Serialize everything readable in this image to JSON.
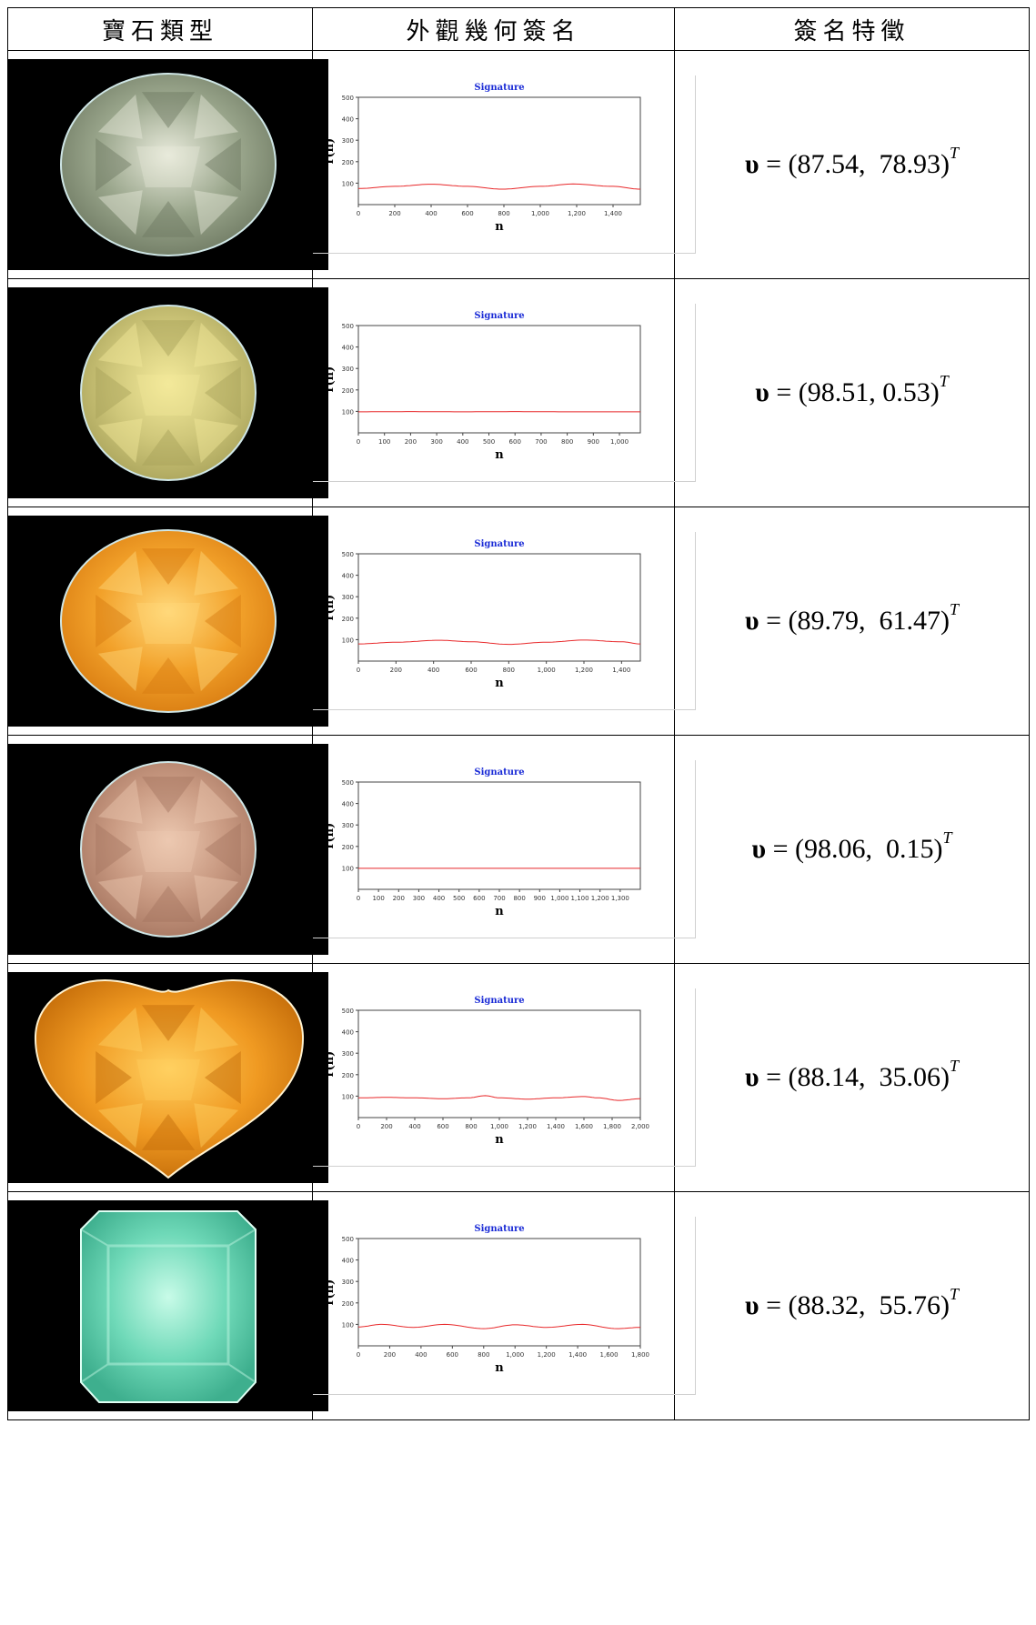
{
  "headers": [
    "寶石類型",
    "外觀幾何簽名",
    "簽名特徵"
  ],
  "chart_common": {
    "title": "Signature",
    "ylabel": "r(n)",
    "xlabel": "n",
    "yticks": [
      100,
      200,
      300,
      400,
      500
    ]
  },
  "rows": [
    {
      "gem": {
        "shape": "oval",
        "colors": [
          "#9aa68c",
          "#6d7861",
          "#e8eadb"
        ]
      },
      "feature": {
        "symbol": "υ",
        "value": "(87.54,  78.93)",
        "sup": "T"
      },
      "chart_data": {
        "type": "line",
        "title": "Signature",
        "xlabel": "n",
        "ylabel": "r(n)",
        "xlim": [
          0,
          1550
        ],
        "ylim": [
          0,
          500
        ],
        "xticks": [
          0,
          200,
          400,
          600,
          800,
          1000,
          1200,
          1400
        ],
        "xtick_labels": [
          "0",
          "200",
          "400",
          "600",
          "800",
          "1,000",
          "1,200",
          "1,400"
        ],
        "series": [
          {
            "x": [
              0,
              200,
              400,
              600,
              790,
              1000,
              1180,
              1400,
              1550
            ],
            "y": [
              75,
              85,
              95,
              85,
              72,
              85,
              96,
              85,
              72
            ]
          }
        ]
      }
    },
    {
      "gem": {
        "shape": "round",
        "colors": [
          "#cfc77a",
          "#a8a25a",
          "#f3e99a"
        ]
      },
      "feature": {
        "symbol": "υ",
        "value": "(98.51, 0.53)",
        "sup": "T"
      },
      "chart_data": {
        "type": "line",
        "title": "Signature",
        "xlabel": "n",
        "ylabel": "r(n)",
        "xlim": [
          0,
          1080
        ],
        "ylim": [
          0,
          500
        ],
        "xticks": [
          0,
          100,
          200,
          300,
          400,
          500,
          600,
          700,
          800,
          900,
          1000
        ],
        "xtick_labels": [
          "0",
          "100",
          "200",
          "300",
          "400",
          "500",
          "600",
          "700",
          "800",
          "900",
          "1,000"
        ],
        "series": [
          {
            "x": [
              0,
              200,
              400,
              600,
              800,
              1080
            ],
            "y": [
              98,
              99,
              98,
              99,
              98,
              98
            ]
          }
        ]
      }
    },
    {
      "gem": {
        "shape": "oval",
        "colors": [
          "#f2a12a",
          "#d77a10",
          "#ffd87a"
        ]
      },
      "feature": {
        "symbol": "υ",
        "value": "(89.79,  61.47)",
        "sup": "T"
      },
      "chart_data": {
        "type": "line",
        "title": "Signature",
        "xlabel": "n",
        "ylabel": "r(n)",
        "xlim": [
          0,
          1500
        ],
        "ylim": [
          0,
          500
        ],
        "xticks": [
          0,
          200,
          400,
          600,
          800,
          1000,
          1200,
          1400
        ],
        "xtick_labels": [
          "0",
          "200",
          "400",
          "600",
          "800",
          "1,000",
          "1,200",
          "1,400"
        ],
        "series": [
          {
            "x": [
              0,
              200,
              430,
              600,
              800,
              1000,
              1200,
              1400,
              1500
            ],
            "y": [
              80,
              88,
              97,
              90,
              78,
              88,
              98,
              90,
              80
            ]
          }
        ]
      }
    },
    {
      "gem": {
        "shape": "round",
        "colors": [
          "#c99a82",
          "#a57560",
          "#ecc8b0"
        ]
      },
      "feature": {
        "symbol": "υ",
        "value": "(98.06,  0.15)",
        "sup": "T"
      },
      "chart_data": {
        "type": "line",
        "title": "Signature",
        "xlabel": "n",
        "ylabel": "r(n)",
        "xlim": [
          0,
          1400
        ],
        "ylim": [
          0,
          500
        ],
        "xticks": [
          0,
          100,
          200,
          300,
          400,
          500,
          600,
          700,
          800,
          900,
          1000,
          1100,
          1200,
          1300
        ],
        "xtick_labels": [
          "0",
          "100",
          "200",
          "300",
          "400",
          "500",
          "600",
          "700",
          "800",
          "900",
          "1,000",
          "1,100",
          "1,200",
          "1,300"
        ],
        "series": [
          {
            "x": [
              0,
              300,
              700,
              1000,
              1400
            ],
            "y": [
              98,
              98,
              98,
              98,
              98
            ]
          }
        ]
      }
    },
    {
      "gem": {
        "shape": "heart",
        "colors": [
          "#f09a22",
          "#c26a08",
          "#ffd060"
        ]
      },
      "feature": {
        "symbol": "υ",
        "value": "(88.14,  35.06)",
        "sup": "T"
      },
      "chart_data": {
        "type": "line",
        "title": "Signature",
        "xlabel": "n",
        "ylabel": "r(n)",
        "xlim": [
          0,
          2000
        ],
        "ylim": [
          0,
          500
        ],
        "xticks": [
          0,
          200,
          400,
          600,
          800,
          1000,
          1200,
          1400,
          1600,
          1800,
          2000
        ],
        "xtick_labels": [
          "0",
          "200",
          "400",
          "600",
          "800",
          "1,000",
          "1,200",
          "1,400",
          "1,600",
          "1,800",
          "2,000"
        ],
        "series": [
          {
            "x": [
              0,
              200,
              400,
              600,
              780,
              900,
              1000,
              1200,
              1400,
              1600,
              1700,
              1850,
              2000
            ],
            "y": [
              92,
              94,
              92,
              88,
              92,
              102,
              92,
              86,
              92,
              98,
              92,
              80,
              88
            ]
          }
        ]
      }
    },
    {
      "gem": {
        "shape": "emerald",
        "colors": [
          "#6fd9b8",
          "#3eaf8e",
          "#c8fbe8"
        ]
      },
      "feature": {
        "symbol": "υ",
        "value": "(88.32,  55.76)",
        "sup": "T"
      },
      "chart_data": {
        "type": "line",
        "title": "Signature",
        "xlabel": "n",
        "ylabel": "r(n)",
        "xlim": [
          0,
          1800
        ],
        "ylim": [
          0,
          500
        ],
        "xticks": [
          0,
          200,
          400,
          600,
          800,
          1000,
          1200,
          1400,
          1600,
          1800
        ],
        "xtick_labels": [
          "0",
          "200",
          "400",
          "600",
          "800",
          "1,000",
          "1,200",
          "1,400",
          "1,600",
          "1,800"
        ],
        "series": [
          {
            "x": [
              0,
              150,
              350,
              550,
              800,
              1000,
              1200,
              1430,
              1650,
              1800
            ],
            "y": [
              88,
              100,
              86,
              100,
              80,
              98,
              86,
              100,
              80,
              86
            ]
          }
        ]
      }
    }
  ]
}
